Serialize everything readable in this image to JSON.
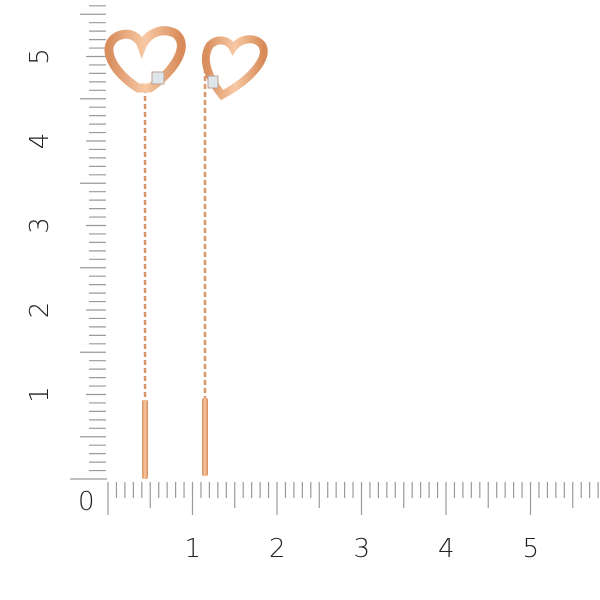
{
  "ruler": {
    "unit": "cm",
    "origin_label": "0",
    "x_labels": [
      "1",
      "2",
      "3",
      "4",
      "5"
    ],
    "y_labels": [
      "1",
      "2",
      "3",
      "4",
      "5"
    ],
    "tick_color": "#9a9a9a",
    "label_color": "#222222"
  },
  "product": {
    "description_icon": "heart-thread-earrings",
    "metal_color": "#e8a878",
    "stone_color": "#dfe6ea"
  }
}
